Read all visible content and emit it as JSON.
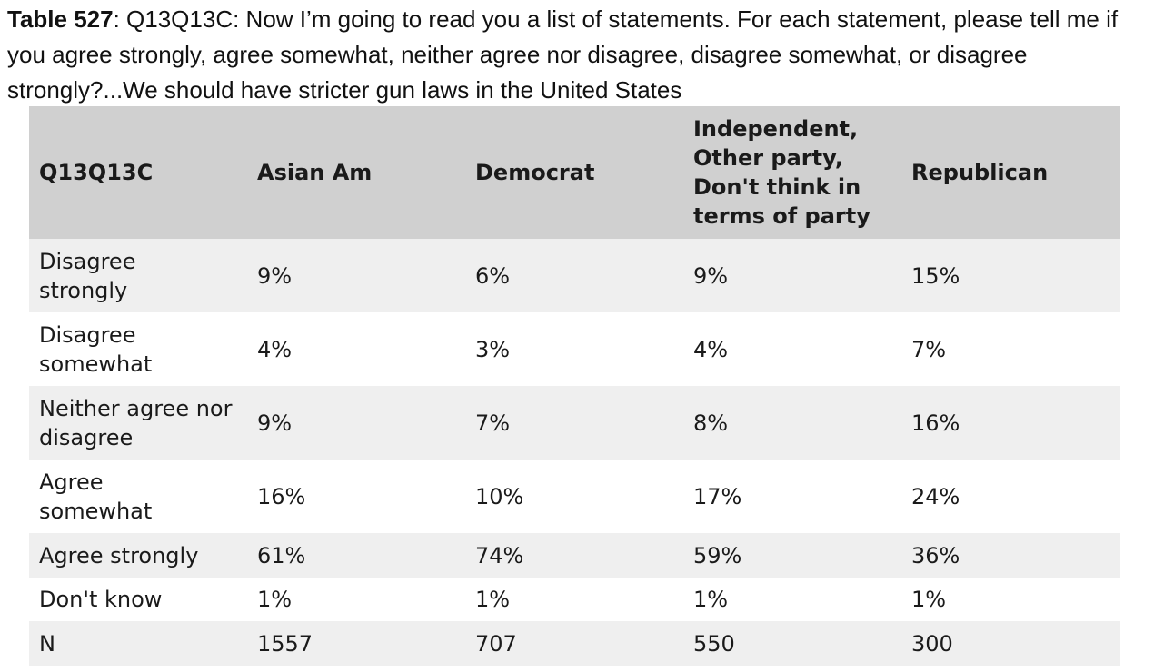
{
  "caption": {
    "table_label": "Table 527",
    "text": ": Q13Q13C: Now I’m going to read you a list of statements. For each statement, please tell me if you agree strongly, agree somewhat, neither agree nor disagree, disagree somewhat, or disagree strongly?...We should have stricter gun laws in the United States"
  },
  "table": {
    "headers": [
      "Q13Q13C",
      "Asian Am",
      "Democrat",
      "Independent, Other party, Don't think in terms of party",
      "Republican"
    ],
    "rows": [
      [
        "Disagree strongly",
        "9%",
        "6%",
        "9%",
        "15%"
      ],
      [
        "Disagree somewhat",
        "4%",
        "3%",
        "4%",
        "7%"
      ],
      [
        "Neither agree nor disagree",
        "9%",
        "7%",
        "8%",
        "16%"
      ],
      [
        "Agree somewhat",
        "16%",
        "10%",
        "17%",
        "24%"
      ],
      [
        "Agree strongly",
        "61%",
        "74%",
        "59%",
        "36%"
      ],
      [
        "Don't know",
        "1%",
        "1%",
        "1%",
        "1%"
      ],
      [
        "N",
        "1557",
        "707",
        "550",
        "300"
      ]
    ]
  },
  "colors": {
    "header_background": "#d0d0d0",
    "shaded_row_background": "#efefef",
    "plain_row_background": "#ffffff",
    "text": "#1a1a1a"
  }
}
